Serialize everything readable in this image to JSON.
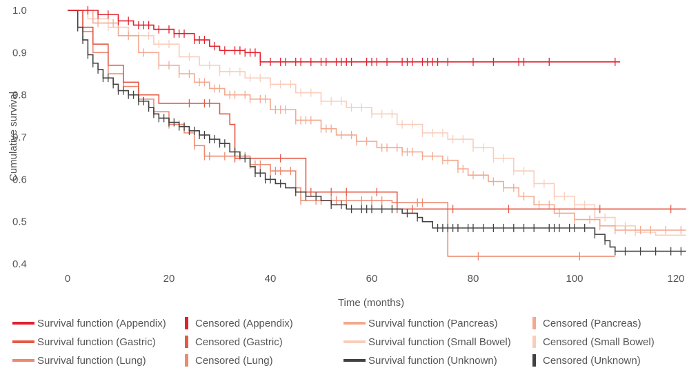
{
  "chart_data": {
    "type": "line",
    "title": "",
    "xlabel": "Time (months)",
    "ylabel": "Cumulative survival",
    "xlim": [
      0,
      122
    ],
    "ylim": [
      0.4,
      1.0
    ],
    "x_ticks": [
      "0",
      "20",
      "40",
      "60",
      "80",
      "100",
      "120"
    ],
    "y_ticks": [
      "0.4",
      "0.5",
      "0.6",
      "0.7",
      "0.8",
      "0.9",
      "1.0"
    ],
    "grid": false,
    "legend_position": "bottom",
    "series": [
      {
        "name": "Appendix",
        "color": "#e3202e",
        "steps": [
          [
            0,
            1.0
          ],
          [
            6,
            0.99
          ],
          [
            10,
            0.975
          ],
          [
            13,
            0.965
          ],
          [
            17,
            0.955
          ],
          [
            21,
            0.945
          ],
          [
            25,
            0.93
          ],
          [
            28,
            0.915
          ],
          [
            30,
            0.905
          ],
          [
            35,
            0.9
          ],
          [
            38,
            0.878
          ],
          [
            109,
            0.878
          ]
        ],
        "censored": [
          4,
          6,
          8,
          10,
          12,
          14,
          15,
          16,
          18,
          20,
          21,
          22,
          23,
          25,
          26,
          27,
          29,
          31,
          33,
          34,
          35,
          36,
          37,
          38,
          40,
          42,
          43,
          45,
          46,
          48,
          50,
          51,
          53,
          54,
          55,
          56,
          59,
          60,
          61,
          63,
          66,
          67,
          68,
          70,
          71,
          72,
          73,
          75,
          80,
          84,
          89,
          90,
          95,
          108
        ]
      },
      {
        "name": "Gastric",
        "color": "#e45a44",
        "steps": [
          [
            0,
            1.0
          ],
          [
            3,
            0.96
          ],
          [
            5,
            0.92
          ],
          [
            8,
            0.87
          ],
          [
            11,
            0.83
          ],
          [
            14,
            0.8
          ],
          [
            18,
            0.78
          ],
          [
            28,
            0.78
          ],
          [
            30,
            0.755
          ],
          [
            32,
            0.73
          ],
          [
            33,
            0.65
          ],
          [
            45,
            0.65
          ],
          [
            47,
            0.57
          ],
          [
            64,
            0.57
          ],
          [
            65,
            0.53
          ],
          [
            122,
            0.53
          ]
        ],
        "censored": [
          24,
          27,
          28,
          33,
          42,
          48,
          52,
          55,
          61,
          65,
          68,
          76,
          87,
          105,
          119
        ]
      },
      {
        "name": "Lung",
        "color": "#ec8a70",
        "steps": [
          [
            0,
            1.0
          ],
          [
            3,
            0.95
          ],
          [
            5,
            0.9
          ],
          [
            8,
            0.85
          ],
          [
            11,
            0.82
          ],
          [
            14,
            0.79
          ],
          [
            17,
            0.76
          ],
          [
            20,
            0.73
          ],
          [
            23,
            0.71
          ],
          [
            25,
            0.68
          ],
          [
            27,
            0.655
          ],
          [
            36,
            0.635
          ],
          [
            40,
            0.62
          ],
          [
            45,
            0.58
          ],
          [
            46,
            0.55
          ],
          [
            63,
            0.55
          ],
          [
            64,
            0.545
          ],
          [
            74,
            0.545
          ],
          [
            75,
            0.418
          ],
          [
            108,
            0.418
          ]
        ],
        "censored": [
          17,
          20,
          22,
          25,
          27,
          28,
          31,
          33,
          34,
          35,
          36,
          37,
          38,
          40,
          41,
          42,
          44,
          46,
          49,
          50,
          52,
          53,
          55,
          58,
          60,
          62,
          69,
          70,
          81,
          101
        ]
      },
      {
        "name": "Pancreas",
        "color": "#f3a98e",
        "steps": [
          [
            0,
            1.0
          ],
          [
            5,
            0.97
          ],
          [
            10,
            0.94
          ],
          [
            14,
            0.9
          ],
          [
            18,
            0.87
          ],
          [
            22,
            0.85
          ],
          [
            25,
            0.83
          ],
          [
            28,
            0.815
          ],
          [
            31,
            0.8
          ],
          [
            36,
            0.79
          ],
          [
            40,
            0.765
          ],
          [
            45,
            0.74
          ],
          [
            50,
            0.72
          ],
          [
            53,
            0.705
          ],
          [
            57,
            0.69
          ],
          [
            61,
            0.675
          ],
          [
            66,
            0.665
          ],
          [
            70,
            0.655
          ],
          [
            74,
            0.645
          ],
          [
            77,
            0.625
          ],
          [
            79,
            0.61
          ],
          [
            83,
            0.595
          ],
          [
            86,
            0.58
          ],
          [
            89,
            0.56
          ],
          [
            92,
            0.54
          ],
          [
            96,
            0.52
          ],
          [
            100,
            0.505
          ],
          [
            105,
            0.49
          ],
          [
            108,
            0.48
          ],
          [
            122,
            0.48
          ]
        ],
        "censored": [
          6,
          9,
          12,
          15,
          18,
          20,
          22,
          24,
          26,
          27,
          29,
          30,
          32,
          33,
          35,
          36,
          38,
          39,
          41,
          42,
          43,
          45,
          46,
          47,
          48,
          50,
          51,
          52,
          54,
          56,
          57,
          59,
          62,
          63,
          65,
          66,
          67,
          68,
          70,
          72,
          74,
          75,
          77,
          78,
          80,
          82,
          84,
          86,
          88,
          90,
          93,
          95,
          97,
          100,
          103,
          105,
          108,
          110,
          113,
          115,
          118,
          121
        ]
      },
      {
        "name": "Small Bowel",
        "color": "#f9cdbb",
        "steps": [
          [
            0,
            1.0
          ],
          [
            4,
            0.98
          ],
          [
            8,
            0.96
          ],
          [
            12,
            0.94
          ],
          [
            17,
            0.92
          ],
          [
            22,
            0.89
          ],
          [
            26,
            0.87
          ],
          [
            30,
            0.855
          ],
          [
            35,
            0.84
          ],
          [
            40,
            0.825
          ],
          [
            45,
            0.805
          ],
          [
            50,
            0.785
          ],
          [
            55,
            0.77
          ],
          [
            60,
            0.755
          ],
          [
            65,
            0.73
          ],
          [
            70,
            0.71
          ],
          [
            75,
            0.695
          ],
          [
            80,
            0.675
          ],
          [
            84,
            0.65
          ],
          [
            88,
            0.62
          ],
          [
            92,
            0.59
          ],
          [
            96,
            0.56
          ],
          [
            100,
            0.54
          ],
          [
            104,
            0.51
          ],
          [
            108,
            0.49
          ],
          [
            112,
            0.475
          ],
          [
            116,
            0.468
          ],
          [
            122,
            0.468
          ]
        ],
        "censored": [
          8,
          12,
          14,
          16,
          18,
          20,
          24,
          28,
          30,
          32,
          34,
          36,
          38,
          40,
          42,
          44,
          46,
          48,
          50,
          52,
          54,
          56,
          58,
          60,
          62,
          64,
          66,
          68,
          70,
          72,
          74,
          76,
          78,
          80,
          82,
          84,
          86,
          88,
          90,
          92,
          94,
          96,
          98,
          100,
          102,
          104,
          106,
          108,
          110,
          112
        ]
      },
      {
        "name": "Unknown",
        "color": "#444040",
        "steps": [
          [
            0,
            1.0
          ],
          [
            2,
            0.96
          ],
          [
            3,
            0.93
          ],
          [
            4,
            0.895
          ],
          [
            5,
            0.875
          ],
          [
            6,
            0.86
          ],
          [
            7,
            0.84
          ],
          [
            9,
            0.825
          ],
          [
            10,
            0.81
          ],
          [
            12,
            0.8
          ],
          [
            14,
            0.785
          ],
          [
            16,
            0.77
          ],
          [
            17,
            0.755
          ],
          [
            18,
            0.745
          ],
          [
            20,
            0.735
          ],
          [
            22,
            0.725
          ],
          [
            24,
            0.715
          ],
          [
            26,
            0.705
          ],
          [
            28,
            0.695
          ],
          [
            30,
            0.685
          ],
          [
            32,
            0.665
          ],
          [
            34,
            0.65
          ],
          [
            36,
            0.63
          ],
          [
            37,
            0.615
          ],
          [
            39,
            0.6
          ],
          [
            41,
            0.59
          ],
          [
            43,
            0.58
          ],
          [
            45,
            0.57
          ],
          [
            47,
            0.56
          ],
          [
            50,
            0.55
          ],
          [
            52,
            0.54
          ],
          [
            55,
            0.53
          ],
          [
            65,
            0.53
          ],
          [
            66,
            0.52
          ],
          [
            69,
            0.51
          ],
          [
            70,
            0.5
          ],
          [
            72,
            0.485
          ],
          [
            103,
            0.485
          ],
          [
            104,
            0.47
          ],
          [
            106,
            0.455
          ],
          [
            107,
            0.44
          ],
          [
            108,
            0.43
          ],
          [
            122,
            0.43
          ]
        ],
        "censored": [
          2,
          3,
          4,
          5,
          6,
          7,
          8,
          9,
          10,
          11,
          12,
          13,
          14,
          15,
          16,
          17,
          18,
          19,
          20,
          21,
          22,
          23,
          24,
          25,
          26,
          27,
          28,
          29,
          30,
          31,
          33,
          35,
          37,
          38,
          39,
          40,
          42,
          45,
          47,
          49,
          52,
          54,
          56,
          58,
          59,
          60,
          62,
          64,
          67,
          69,
          73,
          74,
          75,
          76,
          77,
          79,
          80,
          82,
          84,
          86,
          88,
          90,
          92,
          95,
          96,
          97,
          99,
          100,
          102,
          104,
          106,
          108,
          110,
          113,
          116,
          119,
          121
        ]
      }
    ]
  },
  "legend": {
    "items": [
      {
        "label": "Survival function (Appendix)",
        "kind": "line",
        "color": "#e3202e"
      },
      {
        "label": "Censored (Appendix)",
        "kind": "bar",
        "color": "#e3202e"
      },
      {
        "label": "Survival function (Pancreas)",
        "kind": "line",
        "color": "#f3a98e"
      },
      {
        "label": "Censored (Pancreas)",
        "kind": "bar",
        "color": "#f3a98e"
      },
      {
        "label": "Survival function (Gastric)",
        "kind": "line",
        "color": "#e45a44"
      },
      {
        "label": "Censored (Gastric)",
        "kind": "bar",
        "color": "#e45a44"
      },
      {
        "label": "Survival function (Small Bowel)",
        "kind": "line",
        "color": "#f9cdbb"
      },
      {
        "label": "Censored (Small Bowel)",
        "kind": "bar",
        "color": "#f9cdbb"
      },
      {
        "label": "Survival function (Lung)",
        "kind": "line",
        "color": "#ec8a70"
      },
      {
        "label": "Censored (Lung)",
        "kind": "bar",
        "color": "#ec8a70"
      },
      {
        "label": "Survival function (Unknown)",
        "kind": "line",
        "color": "#444040"
      },
      {
        "label": "Censored (Unknown)",
        "kind": "bar",
        "color": "#444040"
      }
    ]
  }
}
